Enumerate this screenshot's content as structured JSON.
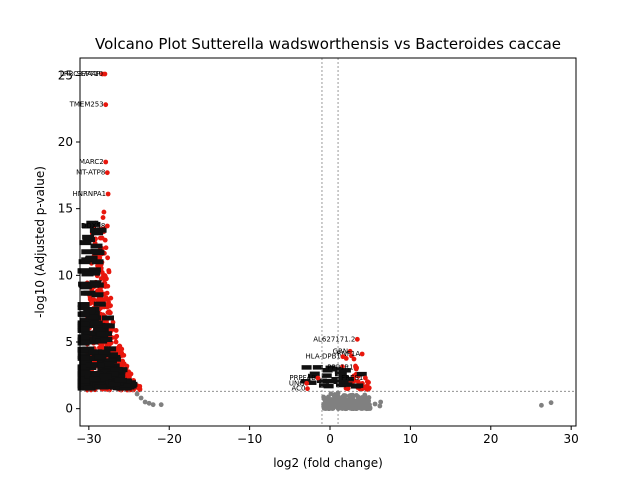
{
  "chart_data": {
    "type": "scatter",
    "title": "Volcano Plot Sutterella wadsworthensis vs Bacteroides caccae",
    "xlabel": "log2 (fold change)",
    "ylabel": "-log10 (Adjusted p-value)",
    "xlim": [
      -31.1,
      30.6
    ],
    "ylim": [
      -1.3,
      26.3
    ],
    "xticks": [
      -30,
      -20,
      -10,
      0,
      10,
      20,
      30
    ],
    "yticks": [
      0,
      5,
      10,
      15,
      20,
      25
    ],
    "grid": false,
    "threshold_lines": {
      "fold_change": [
        -1,
        1
      ],
      "adj_pvalue": 1.3
    },
    "colors": {
      "significant": "#e8170d",
      "not_significant": "#808080",
      "threshold_line": "#808080"
    },
    "labeled_points": [
      {
        "label": "LRRC37A4P",
        "x": -28.3,
        "y": 25.1
      },
      {
        "label": "SEPT10",
        "x": -28.0,
        "y": 25.1
      },
      {
        "label": "TMEM253",
        "x": -27.9,
        "y": 22.8
      },
      {
        "label": "MARC2",
        "x": -27.9,
        "y": 18.5
      },
      {
        "label": "MT-ATP8",
        "x": -27.7,
        "y": 17.7
      },
      {
        "label": "HNRNPA1",
        "x": -27.6,
        "y": 16.1
      },
      {
        "label": "DDX58",
        "x": -27.7,
        "y": 13.7
      },
      {
        "label": "AL627171.2",
        "x": 3.4,
        "y": 5.2
      },
      {
        "label": "GRN",
        "x": 2.5,
        "y": 4.3
      },
      {
        "label": "RNF1A",
        "x": 4.0,
        "y": 4.1
      },
      {
        "label": "HLA-DPB1",
        "x": 1.6,
        "y": 3.9
      },
      {
        "label": "PPP1R1",
        "x": 3.2,
        "y": 3.1
      },
      {
        "label": "PRPF4B",
        "x": -1.5,
        "y": 2.3
      },
      {
        "label": "FRES1",
        "x": 4.4,
        "y": 2.3
      },
      {
        "label": "UNG",
        "x": -2.9,
        "y": 1.9
      },
      {
        "label": "AC0",
        "x": -2.8,
        "y": 1.5
      }
    ],
    "significant_curve": [
      [
        -30.0,
        3.0
      ],
      [
        -29.5,
        5.0
      ],
      [
        -29.0,
        8.0
      ],
      [
        -28.5,
        11.0
      ],
      [
        -28.2,
        13.5
      ],
      [
        -28.0,
        15.3
      ],
      [
        -27.7,
        14.3
      ],
      [
        -27.5,
        12.0
      ],
      [
        -27.2,
        10.0
      ],
      [
        -27.0,
        8.5
      ],
      [
        -26.5,
        7.0
      ],
      [
        -26.0,
        5.5
      ],
      [
        -25.5,
        4.2
      ],
      [
        -25.0,
        3.2
      ],
      [
        -24.5,
        2.5
      ],
      [
        -24.0,
        2.0
      ],
      [
        -23.5,
        1.6
      ]
    ],
    "nonsignificant_tail": [
      [
        -24.0,
        1.1
      ],
      [
        -23.5,
        0.8
      ],
      [
        -23.0,
        0.5
      ],
      [
        -22.5,
        0.4
      ],
      [
        -22.0,
        0.3
      ],
      [
        -21.0,
        0.3
      ]
    ],
    "positive_outliers": [
      [
        26.3,
        0.25
      ],
      [
        27.5,
        0.45
      ],
      [
        6.2,
        0.2
      ],
      [
        6.3,
        0.5
      ],
      [
        5.6,
        0.35
      ],
      [
        4.8,
        0.6
      ]
    ]
  }
}
